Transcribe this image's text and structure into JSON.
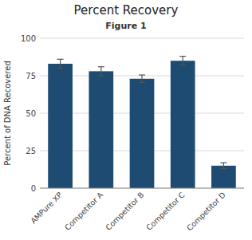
{
  "chart_data": {
    "type": "bar",
    "title": "Percent Recovery",
    "subtitle": "Figure 1",
    "ylabel": "Percent of DNA Recovered",
    "categories": [
      "AMPure XP",
      "Competitor A",
      "Competitor B",
      "Competitor C",
      "Competitor D"
    ],
    "values": [
      83,
      78,
      73,
      85,
      15
    ],
    "errors": [
      3,
      3,
      2.5,
      3,
      2
    ],
    "color": "#1d4b72",
    "ylim": [
      0,
      100
    ],
    "yticks": [
      0,
      25,
      50,
      75,
      100
    ],
    "grid": true
  }
}
